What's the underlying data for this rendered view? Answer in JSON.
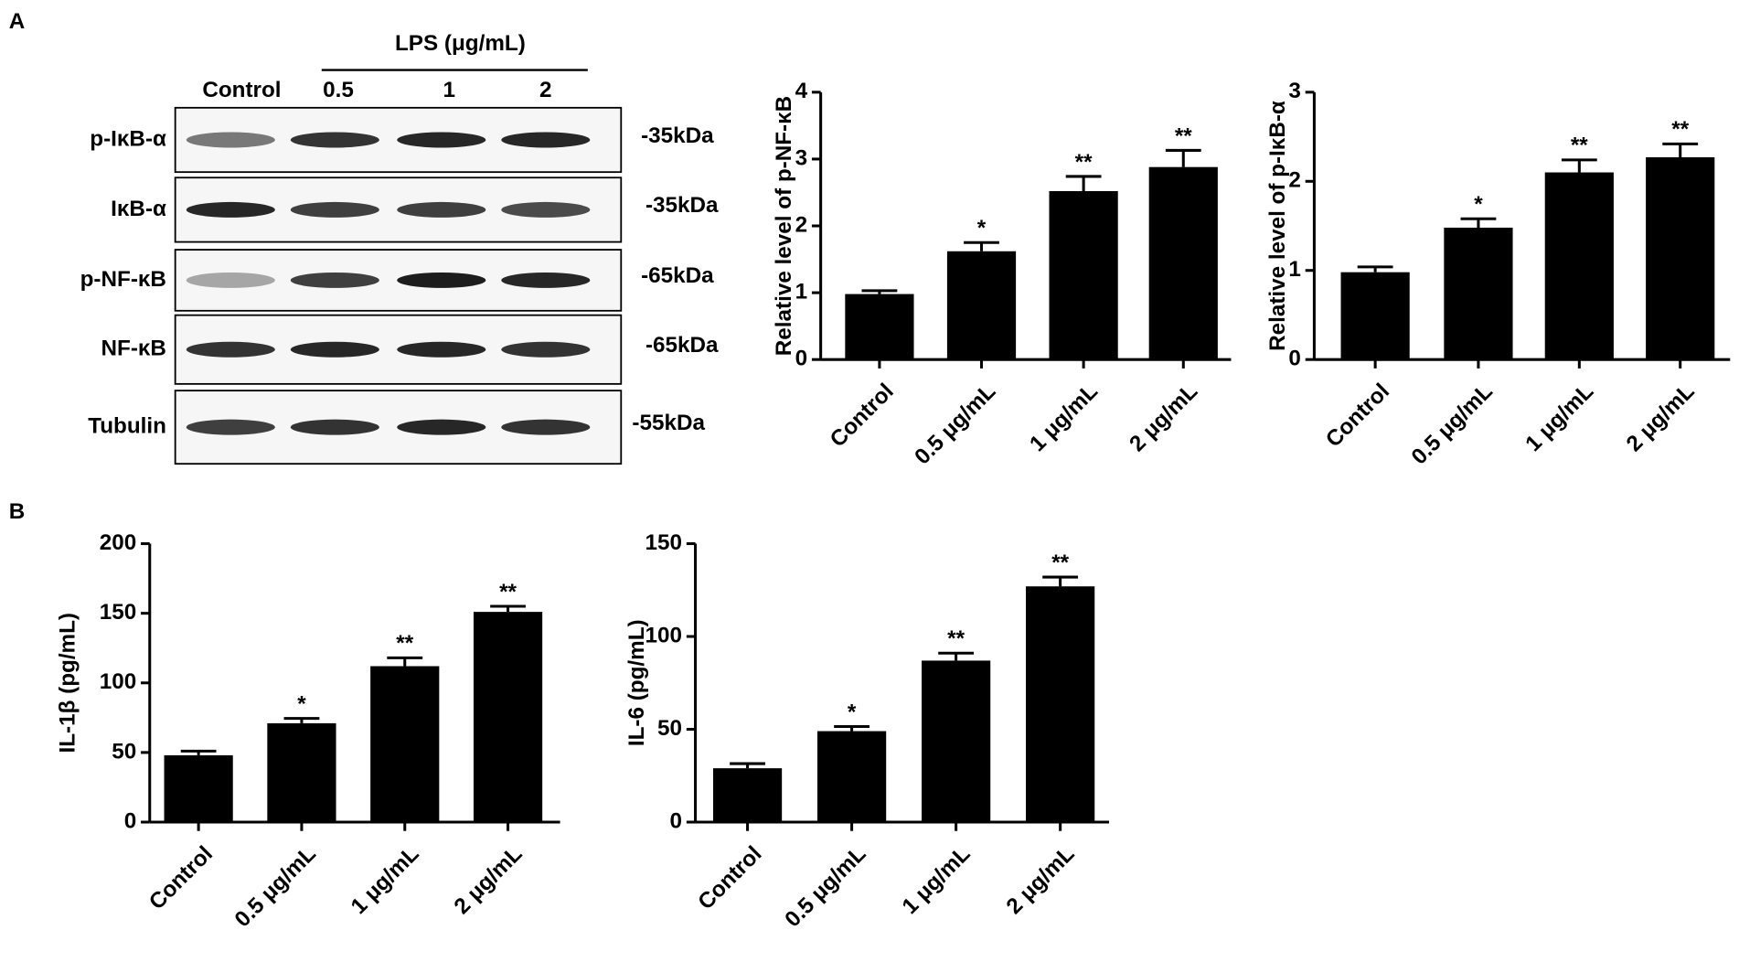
{
  "panel_labels": [
    "A",
    "B"
  ],
  "blot": {
    "header": "LPS (μg/mL)",
    "lanes": [
      "Control",
      "0.5",
      "1",
      "2"
    ],
    "rows": [
      {
        "label": "p-IκB-α",
        "size": "-35kDa"
      },
      {
        "label": "IκB-α",
        "size": "-35kDa"
      },
      {
        "label": "p-NF-κB",
        "size": "-65kDa"
      },
      {
        "label": "NF-κB",
        "size": "-65kDa"
      },
      {
        "label": "Tubulin",
        "size": "-55kDa"
      }
    ]
  },
  "chart_data": [
    {
      "type": "bar",
      "y_label": "Relative level of p-NF-κB",
      "categories": [
        "Control",
        "0.5 μg/mL",
        "1 μg/mL",
        "2 μg/mL"
      ],
      "values": [
        0.98,
        1.62,
        2.52,
        2.88
      ],
      "errors": [
        0.05,
        0.13,
        0.22,
        0.25
      ],
      "annotations": [
        null,
        "*",
        "**",
        "**"
      ],
      "color": "#000000",
      "ylim": [
        0,
        4
      ],
      "yticks": [
        0,
        1,
        2,
        3,
        4
      ]
    },
    {
      "type": "bar",
      "y_label": "Relative level of p-IκB-α",
      "categories": [
        "Control",
        "0.5 μg/mL",
        "1 μg/mL",
        "2 μg/mL"
      ],
      "values": [
        0.98,
        1.48,
        2.1,
        2.27
      ],
      "errors": [
        0.06,
        0.1,
        0.14,
        0.15
      ],
      "annotations": [
        null,
        "*",
        "**",
        "**"
      ],
      "color": "#000000",
      "ylim": [
        0,
        3
      ],
      "yticks": [
        0,
        1,
        2,
        3
      ]
    },
    {
      "type": "bar",
      "y_label": "IL-1β (pg/mL)",
      "categories": [
        "Control",
        "0.5 μg/mL",
        "1 μg/mL",
        "2 μg/mL"
      ],
      "values": [
        48,
        71,
        112,
        151
      ],
      "errors": [
        3,
        3.5,
        6,
        4
      ],
      "annotations": [
        null,
        "*",
        "**",
        "**"
      ],
      "color": "#000000",
      "ylim": [
        0,
        200
      ],
      "yticks": [
        0,
        50,
        100,
        150,
        200
      ]
    },
    {
      "type": "bar",
      "y_label": "IL-6 (pg/mL)",
      "categories": [
        "Control",
        "0.5 μg/mL",
        "1 μg/mL",
        "2 μg/mL"
      ],
      "values": [
        29,
        49,
        87,
        127
      ],
      "errors": [
        2.5,
        2.5,
        4,
        5
      ],
      "annotations": [
        null,
        "*",
        "**",
        "**"
      ],
      "color": "#000000",
      "ylim": [
        0,
        150
      ],
      "yticks": [
        0,
        50,
        100,
        150
      ]
    }
  ]
}
